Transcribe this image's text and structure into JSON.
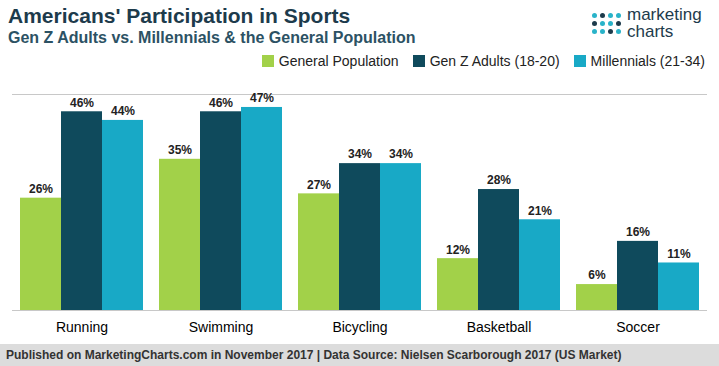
{
  "chart_data": {
    "type": "bar",
    "title": "Americans' Participation in Sports",
    "subtitle": "Gen Z Adults vs. Millennials & the General Population",
    "caption": "Published on MarketingCharts.com in November 2017 | Data Source: Nielsen Scarborough 2017 (US Market)",
    "annotations": [
      "marketing charts"
    ],
    "categories": [
      "Running",
      "Swimming",
      "Bicycling",
      "Basketball",
      "Soccer"
    ],
    "series": [
      {
        "name": "General Population",
        "color": "#a2d149",
        "values": [
          26,
          35,
          27,
          12,
          6
        ],
        "value_labels": [
          "26%",
          "35%",
          "27%",
          "12%",
          "6%"
        ]
      },
      {
        "name": "Gen Z Adults (18-20)",
        "color": "#0f4a5c",
        "values": [
          46,
          46,
          34,
          28,
          16
        ],
        "value_labels": [
          "46%",
          "46%",
          "34%",
          "28%",
          "16%"
        ]
      },
      {
        "name": "Millennials (21-34)",
        "color": "#18a9c6",
        "values": [
          44,
          47,
          34,
          21,
          11
        ],
        "value_labels": [
          "44%",
          "47%",
          "34%",
          "21%",
          "11%"
        ]
      }
    ],
    "ylim": [
      0,
      50
    ],
    "yticks": [],
    "grid": false,
    "legend": "top-right",
    "data_labels": true,
    "tick_labels": "x"
  }
}
